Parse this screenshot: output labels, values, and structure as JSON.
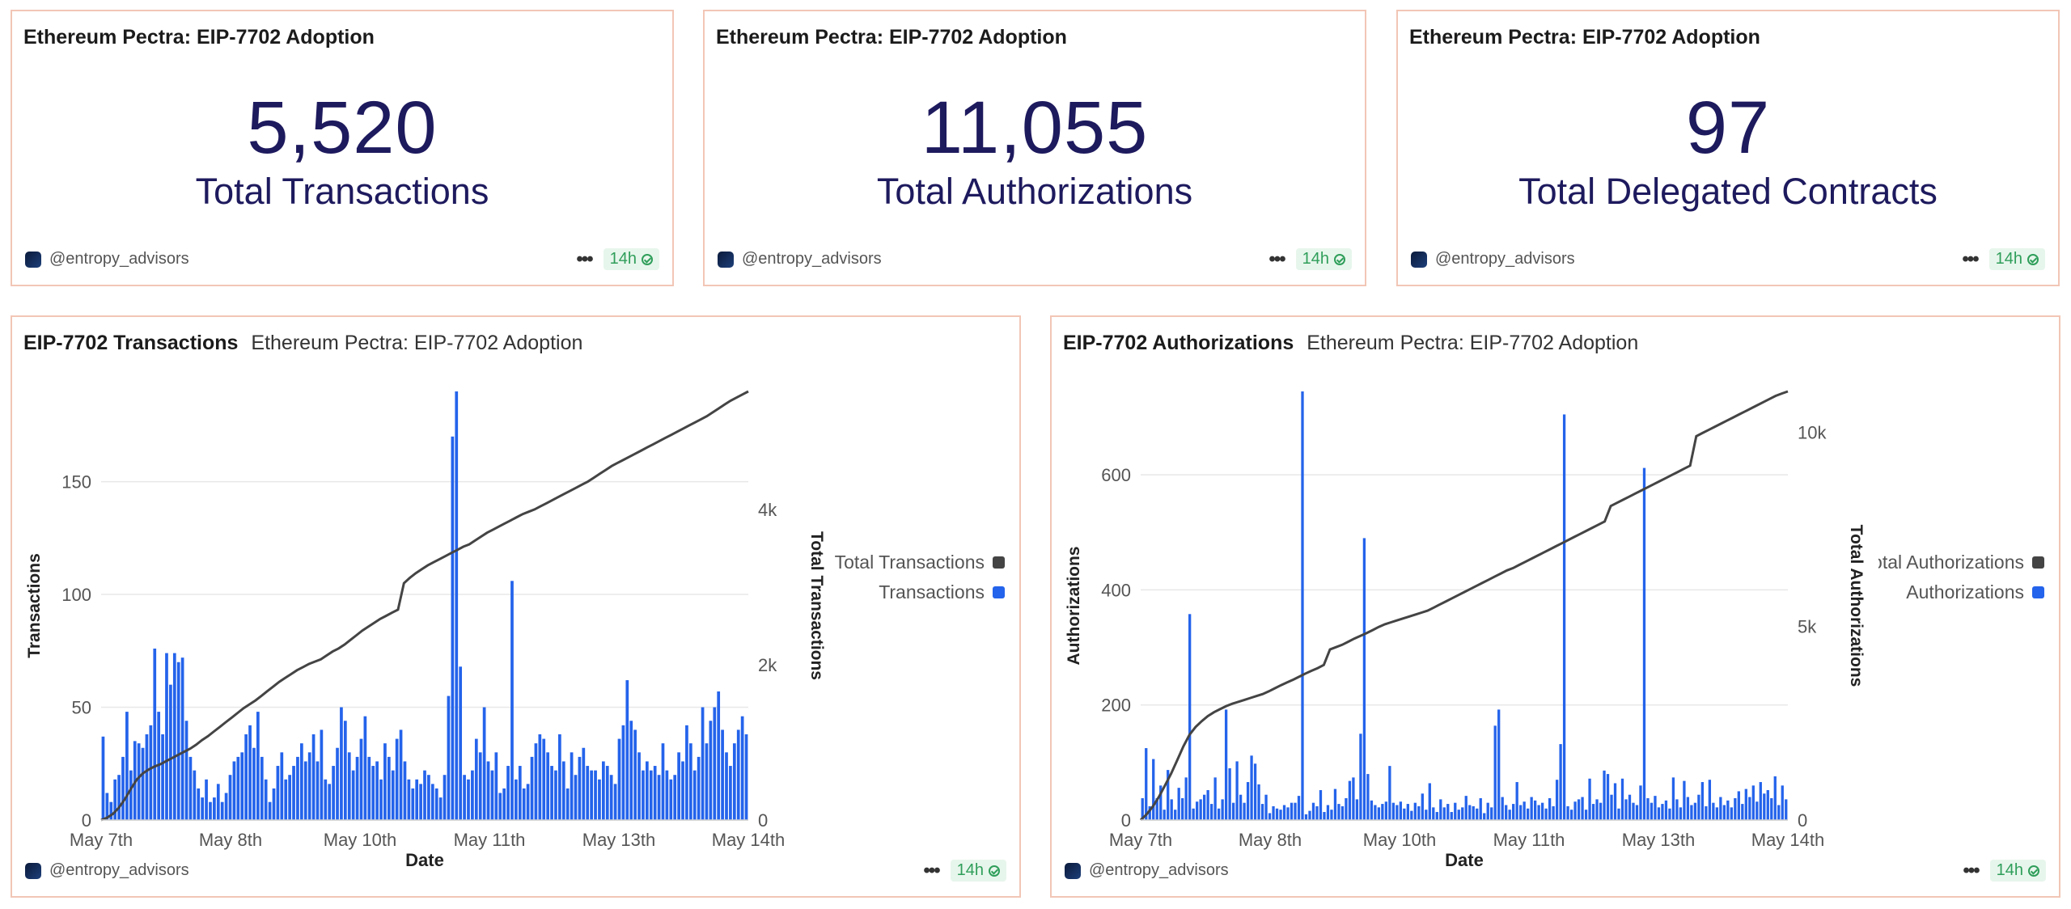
{
  "owner": "@entropy_advisors",
  "freshness": "14h",
  "counters": [
    {
      "title": "Ethereum Pectra: EIP-7702 Adoption",
      "value": "5,520",
      "label": "Total Transactions"
    },
    {
      "title": "Ethereum Pectra: EIP-7702 Adoption",
      "value": "11,055",
      "label": "Total Authorizations"
    },
    {
      "title": "Ethereum Pectra: EIP-7702 Adoption",
      "value": "97",
      "label": "Total Delegated Contracts"
    }
  ],
  "colors": {
    "bar": "#2463eb",
    "line": "#444444",
    "border": "#f2c6b6",
    "counter": "#1e1a5e"
  },
  "chart_data": [
    {
      "type": "bar",
      "title": "EIP-7702 Transactions",
      "subtitle": "Ethereum Pectra: EIP-7702 Adoption",
      "xlabel": "Date",
      "ylabel": "Transactions",
      "y2label": "Total Transactions",
      "xlim": [
        "2025-05-07",
        "2025-05-14"
      ],
      "x_ticks": [
        "May 7th",
        "May 8th",
        "May 10th",
        "May 11th",
        "May 13th",
        "May 14th"
      ],
      "x_tick_pos": [
        0,
        1,
        2,
        3,
        4,
        5
      ],
      "ylim": [
        0,
        190
      ],
      "y_ticks": [
        0,
        50,
        100,
        150
      ],
      "y2lim": [
        0,
        5520
      ],
      "y2_ticks": [
        0,
        2000,
        4000
      ],
      "y2_tick_labels": [
        "0",
        "2k",
        "4k"
      ],
      "legend_position": "right",
      "grid": true,
      "series": [
        {
          "name": "Total Transactions",
          "type": "line",
          "color": "#444444",
          "values": [
            0,
            30,
            80,
            160,
            270,
            400,
            520,
            600,
            650,
            690,
            720,
            760,
            800,
            840,
            880,
            920,
            970,
            1030,
            1080,
            1140,
            1200,
            1260,
            1320,
            1380,
            1440,
            1490,
            1540,
            1600,
            1660,
            1720,
            1780,
            1830,
            1880,
            1930,
            1970,
            2010,
            2040,
            2070,
            2120,
            2170,
            2210,
            2260,
            2320,
            2380,
            2440,
            2490,
            2540,
            2590,
            2630,
            2670,
            2710,
            3050,
            3120,
            3180,
            3230,
            3280,
            3320,
            3360,
            3400,
            3440,
            3480,
            3520,
            3550,
            3600,
            3650,
            3700,
            3740,
            3780,
            3820,
            3860,
            3900,
            3940,
            3970,
            4000,
            4040,
            4080,
            4120,
            4160,
            4200,
            4240,
            4280,
            4320,
            4360,
            4410,
            4460,
            4510,
            4560,
            4600,
            4640,
            4680,
            4720,
            4760,
            4800,
            4840,
            4880,
            4920,
            4960,
            5000,
            5040,
            5080,
            5120,
            5160,
            5200,
            5250,
            5300,
            5350,
            5400,
            5440,
            5480,
            5520
          ]
        },
        {
          "name": "Transactions",
          "type": "bar",
          "color": "#2463eb",
          "values": [
            37,
            12,
            8,
            18,
            20,
            28,
            48,
            22,
            35,
            34,
            32,
            38,
            42,
            76,
            48,
            38,
            74,
            60,
            74,
            70,
            72,
            44,
            28,
            22,
            14,
            10,
            18,
            8,
            10,
            16,
            8,
            12,
            20,
            26,
            28,
            30,
            38,
            42,
            32,
            48,
            28,
            18,
            8,
            14,
            24,
            30,
            18,
            20,
            24,
            28,
            34,
            26,
            30,
            38,
            26,
            40,
            18,
            16,
            24,
            32,
            50,
            44,
            30,
            22,
            28,
            36,
            46,
            28,
            24,
            26,
            18,
            34,
            28,
            22,
            36,
            40,
            26,
            18,
            14,
            18,
            16,
            22,
            20,
            16,
            14,
            10,
            20,
            55,
            170,
            190,
            68,
            20,
            18,
            22,
            36,
            30,
            50,
            26,
            22,
            30,
            12,
            14,
            24,
            106,
            18,
            24,
            14,
            16,
            28,
            34,
            38,
            36,
            30,
            24,
            22,
            38,
            26,
            14,
            30,
            20,
            28,
            32,
            24,
            22,
            22,
            18,
            26,
            24,
            20,
            16,
            36,
            42,
            62,
            44,
            40,
            30,
            22,
            26,
            22,
            24,
            20,
            34,
            22,
            18,
            20,
            30,
            26,
            42,
            34,
            22,
            28,
            50,
            34,
            44,
            50,
            57,
            40,
            30,
            24,
            34,
            40,
            46,
            38
          ]
        }
      ]
    },
    {
      "type": "bar",
      "title": "EIP-7702 Authorizations",
      "subtitle": "Ethereum Pectra: EIP-7702 Adoption",
      "xlabel": "Date",
      "ylabel": "Authorizations",
      "y2label": "Total Authorizations",
      "xlim": [
        "2025-05-07",
        "2025-05-14"
      ],
      "x_ticks": [
        "May 7th",
        "May 8th",
        "May 10th",
        "May 11th",
        "May 13th",
        "May 14th"
      ],
      "x_tick_pos": [
        0,
        1,
        2,
        3,
        4,
        5
      ],
      "ylim": [
        0,
        745
      ],
      "y_ticks": [
        0,
        200,
        400,
        600
      ],
      "y2lim": [
        0,
        11055
      ],
      "y2_ticks": [
        0,
        5000,
        10000
      ],
      "y2_tick_labels": [
        "0",
        "5k",
        "10k"
      ],
      "legend_position": "right",
      "grid": true,
      "series": [
        {
          "name": "Total Authorizations",
          "type": "line",
          "color": "#444444",
          "values": [
            0,
            150,
            350,
            600,
            900,
            1200,
            1550,
            1900,
            2200,
            2400,
            2550,
            2680,
            2780,
            2860,
            2940,
            3000,
            3050,
            3100,
            3150,
            3200,
            3250,
            3320,
            3400,
            3480,
            3550,
            3620,
            3700,
            3780,
            3850,
            3920,
            4000,
            4400,
            4460,
            4520,
            4600,
            4680,
            4750,
            4820,
            4900,
            4980,
            5050,
            5100,
            5150,
            5200,
            5250,
            5300,
            5350,
            5400,
            5480,
            5560,
            5640,
            5720,
            5800,
            5880,
            5960,
            6040,
            6120,
            6200,
            6280,
            6360,
            6440,
            6500,
            6580,
            6660,
            6740,
            6820,
            6900,
            6980,
            7060,
            7140,
            7220,
            7300,
            7380,
            7460,
            7540,
            7620,
            7700,
            8100,
            8180,
            8260,
            8340,
            8420,
            8500,
            8580,
            8660,
            8740,
            8820,
            8900,
            8980,
            9060,
            9140,
            9900,
            9980,
            10060,
            10140,
            10220,
            10300,
            10380,
            10460,
            10540,
            10620,
            10700,
            10780,
            10860,
            10940,
            11000,
            11055
          ]
        },
        {
          "name": "Authorizations",
          "type": "bar",
          "color": "#2463eb",
          "values": [
            38,
            125,
            24,
            106,
            38,
            60,
            18,
            87,
            36,
            18,
            56,
            38,
            74,
            358,
            20,
            32,
            36,
            44,
            52,
            28,
            74,
            20,
            36,
            192,
            90,
            30,
            102,
            44,
            30,
            66,
            112,
            98,
            62,
            28,
            44,
            12,
            24,
            20,
            18,
            26,
            22,
            30,
            30,
            42,
            745,
            10,
            16,
            30,
            24,
            52,
            14,
            26,
            18,
            54,
            28,
            24,
            38,
            68,
            74,
            36,
            150,
            490,
            80,
            34,
            26,
            22,
            28,
            32,
            94,
            30,
            26,
            32,
            20,
            28,
            16,
            30,
            24,
            46,
            18,
            64,
            22,
            14,
            36,
            22,
            28,
            14,
            30,
            18,
            22,
            42,
            26,
            24,
            20,
            38,
            12,
            30,
            22,
            164,
            192,
            40,
            26,
            18,
            28,
            66,
            26,
            32,
            20,
            40,
            34,
            26,
            30,
            20,
            38,
            24,
            70,
            132,
            705,
            24,
            18,
            32,
            36,
            40,
            18,
            72,
            28,
            36,
            30,
            86,
            80,
            44,
            64,
            20,
            72,
            36,
            44,
            30,
            26,
            60,
            612,
            38,
            30,
            42,
            22,
            28,
            34,
            20,
            74,
            36,
            22,
            68,
            40,
            26,
            30,
            44,
            66,
            24,
            70,
            30,
            22,
            40,
            26,
            34,
            22,
            38,
            50,
            28,
            54,
            40,
            60,
            32,
            66,
            46,
            52,
            38,
            76,
            26,
            60,
            36
          ]
        }
      ]
    }
  ]
}
